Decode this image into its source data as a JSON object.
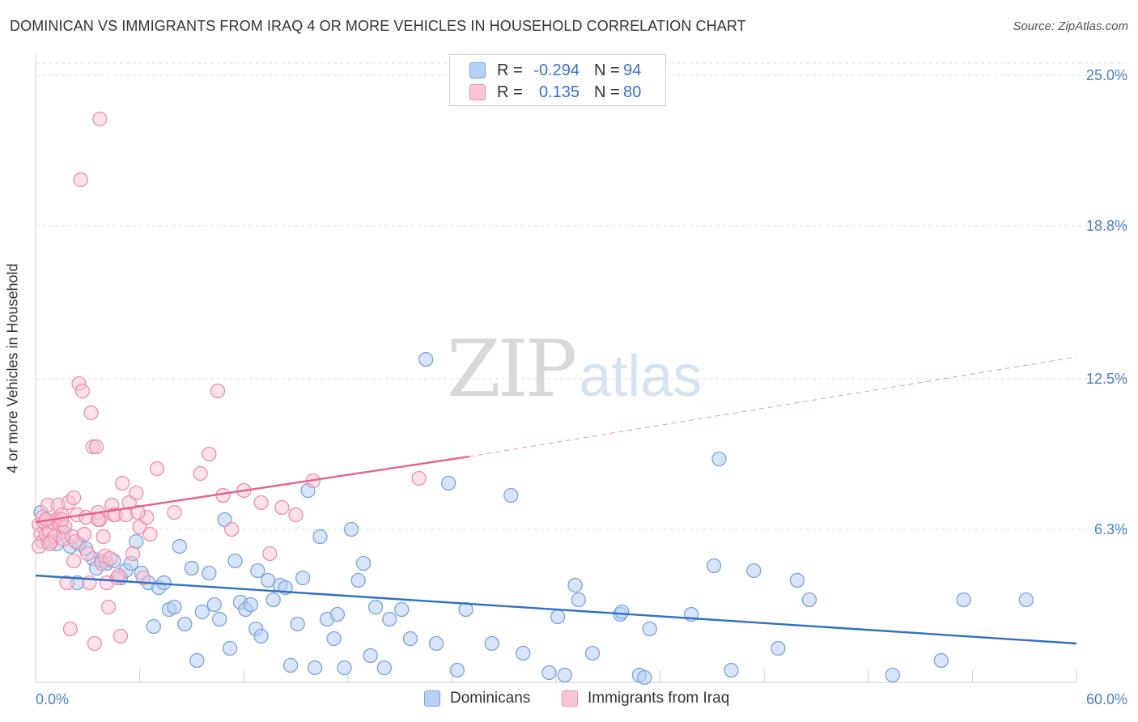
{
  "header": {
    "title": "DOMINICAN VS IMMIGRANTS FROM IRAQ 4 OR MORE VEHICLES IN HOUSEHOLD CORRELATION CHART",
    "source": "Source: ZipAtlas.com"
  },
  "watermark": {
    "zip": "ZIP",
    "atlas": "atlas"
  },
  "legend": {
    "rows": [
      {
        "r_label": "R =",
        "r_value": "-0.294",
        "n_label": "N =",
        "n_value": "94"
      },
      {
        "r_label": "R =",
        "r_value": "0.135",
        "n_label": "N =",
        "n_value": "80"
      }
    ]
  },
  "bottom_legend": {
    "series1": "Dominicans",
    "series2": "Immigrants from Iraq"
  },
  "colors": {
    "blue_fill": "#b8d0f4",
    "blue_stroke": "#7aa3e0",
    "blue_line": "#2f6fc7",
    "pink_fill": "#f9c4d4",
    "pink_stroke": "#ec8fae",
    "pink_line": "#e4608f",
    "grid": "#dddddd",
    "tick_text": "#4a7fc7"
  },
  "chart_data": {
    "type": "scatter",
    "title": "DOMINICAN VS IMMIGRANTS FROM IRAQ 4 OR MORE VEHICLES IN HOUSEHOLD CORRELATION CHART",
    "xlabel": "",
    "ylabel": "4 or more Vehicles in Household",
    "xlim": [
      0,
      60
    ],
    "ylim": [
      0,
      25.5
    ],
    "x_tick_labels": [
      "0.0%",
      "60.0%"
    ],
    "y_ticks": [
      6.3,
      12.5,
      18.8,
      25.0
    ],
    "y_tick_labels": [
      "6.3%",
      "12.5%",
      "18.8%",
      "25.0%"
    ],
    "grid": "horizontal-dashed",
    "legend_position": "top-center",
    "series": [
      {
        "name": "Dominicans",
        "trend": {
          "x": [
            0,
            60
          ],
          "y": [
            4.4,
            1.6
          ],
          "style": "solid"
        },
        "points": [
          [
            0.3,
            7.0
          ],
          [
            0.7,
            5.8
          ],
          [
            1.2,
            5.7
          ],
          [
            1.6,
            6.2
          ],
          [
            2.0,
            5.6
          ],
          [
            2.4,
            4.1
          ],
          [
            2.5,
            5.7
          ],
          [
            2.9,
            5.5
          ],
          [
            3.3,
            5.1
          ],
          [
            3.5,
            4.7
          ],
          [
            3.8,
            5.0
          ],
          [
            4.1,
            4.9
          ],
          [
            4.5,
            5.0
          ],
          [
            4.9,
            4.3
          ],
          [
            5.2,
            4.6
          ],
          [
            5.5,
            4.9
          ],
          [
            5.8,
            5.8
          ],
          [
            6.1,
            4.5
          ],
          [
            6.5,
            4.1
          ],
          [
            6.8,
            2.3
          ],
          [
            7.1,
            3.9
          ],
          [
            7.4,
            4.1
          ],
          [
            7.7,
            3.0
          ],
          [
            8.0,
            3.1
          ],
          [
            8.3,
            5.6
          ],
          [
            8.6,
            2.4
          ],
          [
            9.0,
            4.7
          ],
          [
            9.3,
            0.9
          ],
          [
            9.6,
            2.9
          ],
          [
            10.0,
            4.5
          ],
          [
            10.3,
            3.2
          ],
          [
            10.6,
            2.6
          ],
          [
            10.9,
            6.7
          ],
          [
            11.2,
            1.4
          ],
          [
            11.5,
            5.0
          ],
          [
            11.8,
            3.3
          ],
          [
            12.1,
            3.0
          ],
          [
            12.4,
            3.2
          ],
          [
            12.7,
            2.2
          ],
          [
            13.0,
            1.9
          ],
          [
            12.8,
            4.6
          ],
          [
            13.4,
            4.2
          ],
          [
            13.7,
            3.4
          ],
          [
            14.1,
            4.0
          ],
          [
            14.4,
            3.9
          ],
          [
            14.7,
            0.7
          ],
          [
            15.1,
            2.4
          ],
          [
            15.4,
            4.3
          ],
          [
            15.7,
            7.9
          ],
          [
            16.1,
            0.6
          ],
          [
            16.4,
            6.0
          ],
          [
            16.8,
            2.6
          ],
          [
            17.2,
            1.8
          ],
          [
            17.4,
            2.8
          ],
          [
            17.8,
            0.6
          ],
          [
            18.2,
            6.3
          ],
          [
            18.6,
            4.2
          ],
          [
            18.9,
            4.9
          ],
          [
            19.3,
            1.1
          ],
          [
            19.6,
            3.1
          ],
          [
            20.1,
            0.6
          ],
          [
            20.4,
            2.6
          ],
          [
            21.1,
            3.0
          ],
          [
            21.6,
            1.8
          ],
          [
            22.5,
            13.3
          ],
          [
            23.1,
            1.6
          ],
          [
            23.8,
            8.2
          ],
          [
            24.3,
            0.5
          ],
          [
            24.8,
            3.0
          ],
          [
            26.3,
            1.6
          ],
          [
            27.4,
            7.7
          ],
          [
            28.1,
            1.2
          ],
          [
            29.6,
            0.4
          ],
          [
            30.1,
            2.7
          ],
          [
            30.5,
            0.3
          ],
          [
            31.1,
            4.0
          ],
          [
            31.3,
            3.4
          ],
          [
            32.1,
            1.2
          ],
          [
            33.7,
            2.8
          ],
          [
            33.8,
            2.9
          ],
          [
            34.8,
            0.3
          ],
          [
            35.1,
            0.2
          ],
          [
            35.4,
            2.2
          ],
          [
            37.8,
            2.8
          ],
          [
            39.1,
            4.8
          ],
          [
            39.4,
            9.2
          ],
          [
            40.1,
            0.5
          ],
          [
            41.4,
            4.6
          ],
          [
            42.8,
            1.4
          ],
          [
            43.9,
            4.2
          ],
          [
            44.6,
            3.4
          ],
          [
            49.4,
            0.3
          ],
          [
            52.2,
            0.9
          ],
          [
            53.5,
            3.4
          ],
          [
            57.1,
            3.4
          ]
        ]
      },
      {
        "name": "Immigrants from Iraq",
        "trend": {
          "x": [
            0,
            25
          ],
          "y": [
            6.6,
            9.3
          ],
          "style": "solid",
          "extension": {
            "x": [
              25,
              60
            ],
            "y": [
              9.3,
              13.4
            ],
            "style": "dashed"
          }
        },
        "points": [
          [
            0.2,
            6.5
          ],
          [
            0.3,
            6.1
          ],
          [
            0.4,
            5.8
          ],
          [
            0.5,
            6.6
          ],
          [
            0.6,
            6.1
          ],
          [
            0.7,
            7.3
          ],
          [
            0.8,
            6.2
          ],
          [
            0.9,
            5.8
          ],
          [
            1.0,
            6.6
          ],
          [
            1.1,
            6.0
          ],
          [
            1.2,
            6.7
          ],
          [
            1.3,
            7.3
          ],
          [
            1.4,
            6.5
          ],
          [
            1.5,
            6.9
          ],
          [
            1.6,
            5.9
          ],
          [
            1.7,
            6.4
          ],
          [
            1.8,
            4.1
          ],
          [
            1.9,
            7.4
          ],
          [
            2.0,
            2.2
          ],
          [
            2.1,
            6.0
          ],
          [
            2.2,
            7.6
          ],
          [
            2.3,
            5.8
          ],
          [
            2.4,
            6.9
          ],
          [
            2.5,
            12.3
          ],
          [
            2.6,
            20.7
          ],
          [
            2.7,
            12.0
          ],
          [
            2.8,
            6.1
          ],
          [
            2.9,
            6.8
          ],
          [
            3.0,
            5.3
          ],
          [
            3.1,
            4.1
          ],
          [
            3.2,
            11.1
          ],
          [
            3.3,
            9.7
          ],
          [
            3.4,
            1.6
          ],
          [
            3.5,
            9.7
          ],
          [
            3.6,
            7.0
          ],
          [
            3.7,
            6.7
          ],
          [
            3.8,
            4.9
          ],
          [
            3.9,
            6.0
          ],
          [
            4.0,
            5.2
          ],
          [
            4.1,
            4.1
          ],
          [
            4.2,
            3.1
          ],
          [
            4.3,
            5.1
          ],
          [
            4.4,
            7.3
          ],
          [
            4.5,
            6.9
          ],
          [
            4.6,
            6.9
          ],
          [
            4.7,
            4.3
          ],
          [
            4.8,
            4.4
          ],
          [
            4.9,
            1.9
          ],
          [
            3.7,
            23.2
          ],
          [
            5.0,
            8.2
          ],
          [
            5.2,
            6.9
          ],
          [
            5.4,
            7.4
          ],
          [
            5.6,
            5.3
          ],
          [
            5.8,
            7.8
          ],
          [
            6.0,
            6.4
          ],
          [
            6.2,
            4.3
          ],
          [
            6.4,
            6.8
          ],
          [
            6.6,
            6.1
          ],
          [
            7.0,
            8.8
          ],
          [
            8.0,
            7.0
          ],
          [
            9.5,
            8.6
          ],
          [
            10.0,
            9.4
          ],
          [
            10.5,
            12.0
          ],
          [
            10.8,
            7.7
          ],
          [
            11.3,
            6.3
          ],
          [
            12.0,
            7.9
          ],
          [
            13.0,
            7.4
          ],
          [
            13.5,
            5.3
          ],
          [
            14.2,
            7.2
          ],
          [
            15.0,
            6.9
          ],
          [
            16.0,
            8.3
          ],
          [
            22.1,
            8.4
          ],
          [
            0.2,
            5.6
          ],
          [
            0.4,
            6.8
          ],
          [
            0.6,
            6.7
          ],
          [
            0.8,
            5.7
          ],
          [
            1.5,
            6.7
          ],
          [
            2.2,
            5.0
          ],
          [
            3.6,
            6.7
          ],
          [
            5.9,
            7.0
          ]
        ]
      }
    ]
  }
}
